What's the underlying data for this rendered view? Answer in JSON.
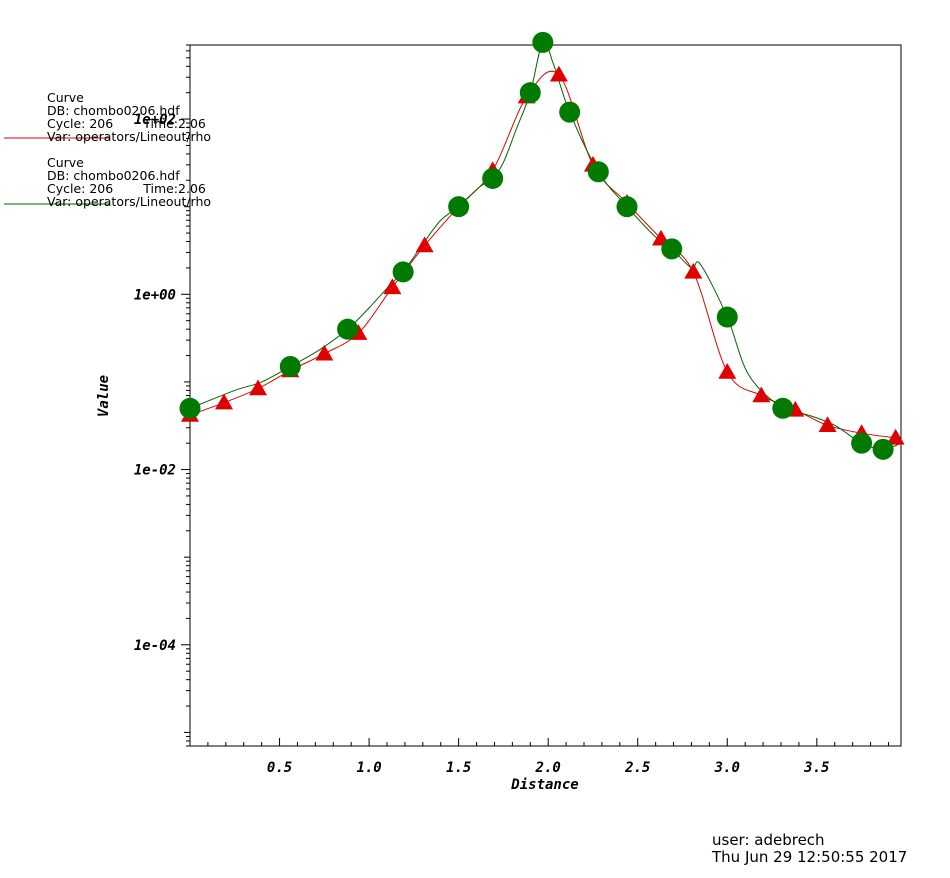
{
  "legend": [
    {
      "title": "Curve",
      "db": "DB: chombo0206.hdf",
      "cycle": "Cycle: 206",
      "time": "Time:2.06",
      "var": "Var: operators/Lineout/rho",
      "color": "#e00000"
    },
    {
      "title": "Curve",
      "db": "DB: chombo0206.hdf",
      "cycle": "Cycle: 206",
      "time": "Time:2.06",
      "var": "Var: operators/Lineout/rho",
      "color": "#006400"
    }
  ],
  "footer": {
    "user": "user: adebrech",
    "timestamp": "Thu Jun 29 12:50:55 2017"
  },
  "chart_data": {
    "type": "line",
    "xlabel": "Distance",
    "ylabel": "Value",
    "xlim": [
      0,
      3.97
    ],
    "ylim": [
      7e-06,
      700
    ],
    "yscale": "log",
    "xticks": [
      0.5,
      1.0,
      1.5,
      2.0,
      2.5,
      3.0,
      3.5
    ],
    "xtick_labels": [
      "0.5",
      "1.0",
      "1.5",
      "2.0",
      "2.5",
      "3.0",
      "3.5"
    ],
    "yticks": [
      0.0001,
      0.01,
      1,
      100
    ],
    "ytick_labels": [
      "1e-04",
      "1e-02",
      "1e+00",
      "1e+02"
    ],
    "series": [
      {
        "color": "#e00000",
        "marker": "triangle",
        "x": [
          0.0,
          0.19,
          0.38,
          0.56,
          0.75,
          0.94,
          1.13,
          1.31,
          1.5,
          1.69,
          1.88,
          2.06,
          2.25,
          2.44,
          2.63,
          2.81,
          3.0,
          3.19,
          3.38,
          3.56,
          3.75,
          3.94
        ],
        "y": [
          0.042,
          0.058,
          0.084,
          0.135,
          0.21,
          0.36,
          1.2,
          3.6,
          10,
          26,
          180,
          320,
          30,
          11,
          4.3,
          1.8,
          0.13,
          0.07,
          0.048,
          0.032,
          0.026,
          0.023
        ]
      },
      {
        "color": "#006400",
        "marker": "circle",
        "x": [
          0.0,
          0.25,
          0.4,
          0.56,
          0.72,
          0.88,
          1.0,
          1.12,
          1.19,
          1.31,
          1.4,
          1.5,
          1.62,
          1.69,
          1.75,
          1.82,
          1.9,
          1.97,
          2.03,
          2.12,
          2.28,
          2.44,
          2.6,
          2.69,
          2.8,
          2.85,
          3.0,
          3.12,
          3.31,
          3.45,
          3.6,
          3.75,
          3.87,
          3.97
        ],
        "y": [
          0.05,
          0.08,
          0.1,
          0.15,
          0.23,
          0.4,
          0.7,
          1.3,
          1.8,
          4,
          7,
          10,
          17,
          21,
          32,
          75,
          200,
          750,
          420,
          120,
          25,
          10,
          4.5,
          3.3,
          2,
          2.2,
          0.55,
          0.12,
          0.05,
          0.042,
          0.032,
          0.02,
          0.017,
          0.02
        ]
      }
    ]
  }
}
